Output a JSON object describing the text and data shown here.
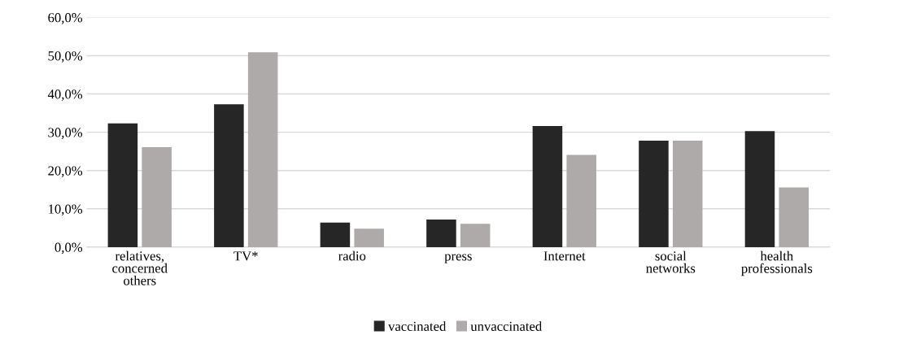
{
  "chart_data": {
    "type": "bar",
    "categories": [
      "relatives,\nconcerned\nothers",
      "TV*",
      "radio",
      "press",
      "Internet",
      "social\nnetworks",
      "health\nprofessionals"
    ],
    "series": [
      {
        "name": "vaccinated",
        "color": "#262626",
        "values": [
          32.3,
          37.3,
          6.4,
          7.2,
          31.6,
          27.8,
          30.3
        ]
      },
      {
        "name": "unvaccinated",
        "color": "#aeaaaa",
        "values": [
          26.1,
          50.9,
          4.8,
          6.1,
          24.1,
          27.8,
          15.6
        ]
      }
    ],
    "ylim": [
      0,
      60
    ],
    "yticks": [
      {
        "value": 0,
        "label": "0,0%"
      },
      {
        "value": 10,
        "label": "10,0%"
      },
      {
        "value": 20,
        "label": "20,0%"
      },
      {
        "value": 30,
        "label": "30,0%"
      },
      {
        "value": 40,
        "label": "40,0%"
      },
      {
        "value": 50,
        "label": "50,0%"
      },
      {
        "value": 60,
        "label": "60,0%"
      }
    ],
    "grid": "y",
    "legend": "bottom"
  }
}
